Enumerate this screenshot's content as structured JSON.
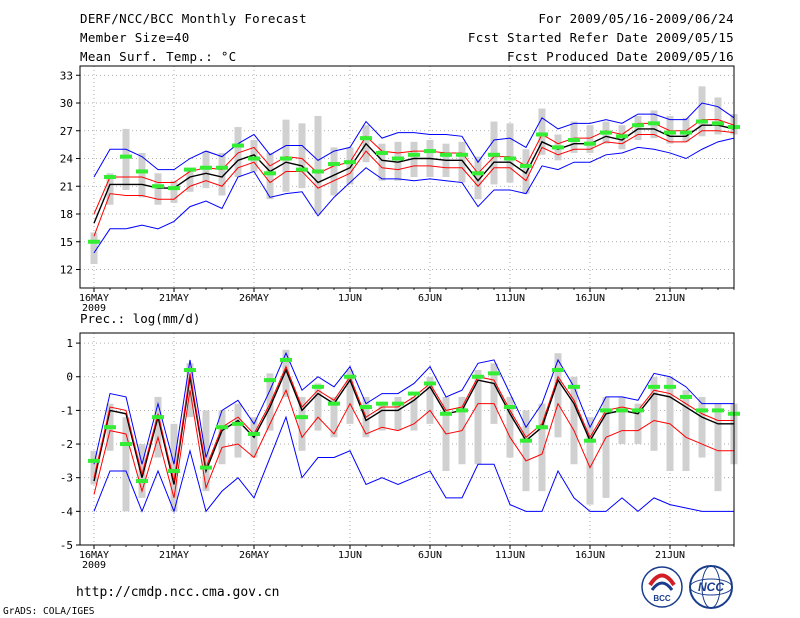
{
  "header": {
    "title": "DERF/NCC/BCC Monthly Forecast",
    "member_size": "Member Size=40",
    "variable1": "Mean Surf. Temp.: °C",
    "period": "For 2009/05/16-2009/06/24",
    "refer_date": "Fcst Started Refer Date 2009/05/15",
    "produced_date": "Fcst Produced Date 2009/05/16"
  },
  "footer": {
    "url": "http://cmdp.ncc.cma.gov.cn",
    "credit": "GrADS: COLA/IGES",
    "logo_bcc": "BCC",
    "logo_ncc": "NCC"
  },
  "colors": {
    "box": "#d0d0d0",
    "ensemble_mean": "#000000",
    "envelope": "#0000ff",
    "inner_band": "#ff0000",
    "observed_mark": "#33ee33",
    "grid": "#999999"
  },
  "chart_data": [
    {
      "type": "line",
      "title": "Mean Surf. Temp.: °C",
      "ylim": [
        10,
        34
      ],
      "yticks": [
        12,
        15,
        18,
        21,
        24,
        27,
        30,
        33
      ],
      "xticks": [
        {
          "day": 0,
          "label": "16MAY",
          "year": "2009"
        },
        {
          "day": 5,
          "label": "21MAY"
        },
        {
          "day": 10,
          "label": "26MAY"
        },
        {
          "day": 16,
          "label": "1JUN"
        },
        {
          "day": 21,
          "label": "6JUN"
        },
        {
          "day": 26,
          "label": "11JUN"
        },
        {
          "day": 31,
          "label": "16JUN"
        },
        {
          "day": 36,
          "label": "21JUN"
        }
      ],
      "series": [
        {
          "name": "ensemble mean",
          "values": [
            17.0,
            21.2,
            21.2,
            21.2,
            20.8,
            20.8,
            22.0,
            22.4,
            22.0,
            23.8,
            24.4,
            22.6,
            23.6,
            23.2,
            21.4,
            22.2,
            23.0,
            25.6,
            23.8,
            23.6,
            24.0,
            24.0,
            23.8,
            23.8,
            21.6,
            23.6,
            23.6,
            22.4,
            25.8,
            25.0,
            25.6,
            25.6,
            26.4,
            26.0,
            27.2,
            27.2,
            26.4,
            26.4,
            27.6,
            27.6,
            27.2
          ]
        },
        {
          "name": "upper envelope",
          "values": [
            22.0,
            25.0,
            25.0,
            24.2,
            22.8,
            22.8,
            24.0,
            24.8,
            24.2,
            25.6,
            26.6,
            24.4,
            25.4,
            25.4,
            23.8,
            24.8,
            25.2,
            28.0,
            26.2,
            26.8,
            26.8,
            26.6,
            26.6,
            26.4,
            23.6,
            26.0,
            26.2,
            25.2,
            28.4,
            27.2,
            27.8,
            27.8,
            28.2,
            27.8,
            28.8,
            28.8,
            28.2,
            28.2,
            30.0,
            29.6,
            28.4
          ]
        },
        {
          "name": "lower envelope",
          "values": [
            13.8,
            16.4,
            16.4,
            16.8,
            16.4,
            17.2,
            18.8,
            19.4,
            18.6,
            22.0,
            22.6,
            19.8,
            20.2,
            20.4,
            17.8,
            19.8,
            21.4,
            23.0,
            21.8,
            21.8,
            21.6,
            21.8,
            21.6,
            21.4,
            18.8,
            20.6,
            20.6,
            20.2,
            23.2,
            22.8,
            23.6,
            23.6,
            24.4,
            24.6,
            25.2,
            25.0,
            24.6,
            24.0,
            25.0,
            25.8,
            26.2
          ]
        },
        {
          "name": "upper band",
          "values": [
            18.0,
            22.0,
            22.0,
            22.0,
            21.4,
            21.4,
            22.6,
            23.0,
            22.8,
            24.6,
            25.2,
            23.2,
            24.2,
            24.0,
            22.4,
            23.2,
            23.6,
            26.4,
            24.8,
            24.6,
            24.8,
            24.8,
            24.6,
            24.6,
            22.4,
            24.2,
            24.2,
            23.2,
            26.6,
            25.6,
            26.2,
            26.2,
            27.0,
            26.6,
            27.8,
            27.8,
            27.0,
            27.0,
            28.2,
            28.2,
            27.6
          ]
        },
        {
          "name": "lower band",
          "values": [
            15.6,
            20.2,
            20.0,
            20.0,
            19.6,
            19.6,
            21.0,
            21.6,
            21.0,
            23.0,
            23.6,
            21.4,
            22.6,
            22.6,
            20.8,
            21.6,
            22.4,
            24.8,
            23.0,
            22.8,
            23.2,
            23.2,
            23.0,
            23.0,
            21.0,
            23.0,
            23.0,
            21.6,
            25.2,
            24.4,
            25.0,
            25.0,
            25.8,
            25.6,
            26.6,
            26.6,
            25.8,
            25.8,
            27.0,
            27.0,
            26.8
          ]
        },
        {
          "name": "observed",
          "values": [
            15.0,
            22.0,
            24.2,
            22.6,
            21.0,
            20.8,
            22.8,
            23.0,
            23.0,
            25.4,
            24.0,
            22.4,
            24.0,
            22.8,
            22.6,
            23.4,
            23.6,
            26.2,
            24.6,
            24.0,
            24.4,
            24.8,
            24.4,
            24.4,
            22.4,
            24.4,
            24.0,
            23.2,
            26.6,
            25.2,
            26.0,
            25.6,
            26.8,
            26.4,
            27.6,
            27.8,
            26.8,
            26.8,
            28.0,
            27.8,
            27.4
          ]
        }
      ],
      "box_low": [
        12.6,
        19.0,
        20.6,
        19.8,
        19.0,
        19.2,
        20.4,
        20.8,
        20.0,
        22.0,
        22.6,
        19.6,
        20.4,
        20.8,
        18.0,
        20.0,
        21.2,
        23.6,
        21.6,
        21.6,
        22.0,
        22.0,
        22.0,
        21.4,
        19.6,
        21.2,
        21.4,
        20.2,
        24.4,
        23.8,
        24.6,
        24.6,
        25.6,
        25.0,
        26.0,
        26.2,
        25.6,
        25.8,
        26.4,
        26.6,
        26.6
      ],
      "box_high": [
        16.0,
        22.4,
        27.2,
        24.6,
        22.4,
        21.6,
        22.8,
        24.8,
        24.6,
        27.4,
        26.0,
        24.6,
        28.2,
        27.8,
        28.6,
        25.2,
        25.2,
        27.6,
        25.6,
        25.8,
        25.8,
        26.0,
        25.6,
        25.8,
        24.2,
        28.0,
        27.8,
        25.0,
        29.4,
        26.6,
        28.0,
        27.6,
        28.0,
        27.6,
        28.6,
        29.2,
        28.6,
        28.4,
        31.8,
        30.6,
        28.8
      ]
    },
    {
      "type": "line",
      "title": "Prec.: log(mm/d)",
      "ylim": [
        -5,
        1.3
      ],
      "yticks": [
        -5,
        -4,
        -3,
        -2,
        -1,
        0,
        1
      ],
      "xticks": [
        {
          "day": 0,
          "label": "16MAY",
          "year": "2009"
        },
        {
          "day": 5,
          "label": "21MAY"
        },
        {
          "day": 10,
          "label": "26MAY"
        },
        {
          "day": 16,
          "label": "1JUN"
        },
        {
          "day": 21,
          "label": "6JUN"
        },
        {
          "day": 26,
          "label": "11JUN"
        },
        {
          "day": 31,
          "label": "16JUN"
        },
        {
          "day": 36,
          "label": "21JUN"
        }
      ],
      "series": [
        {
          "name": "ensemble mean",
          "values": [
            -3.1,
            -1.0,
            -1.1,
            -3.0,
            -1.2,
            -3.2,
            0.0,
            -2.8,
            -1.6,
            -1.3,
            -1.8,
            -0.9,
            0.2,
            -1.0,
            -0.5,
            -0.8,
            -0.1,
            -1.3,
            -1.0,
            -1.0,
            -0.7,
            -0.3,
            -1.1,
            -1.0,
            -0.1,
            -0.2,
            -1.1,
            -1.9,
            -1.5,
            -0.1,
            -0.8,
            -1.9,
            -1.1,
            -1.0,
            -1.1,
            -0.5,
            -0.6,
            -0.9,
            -1.2,
            -1.4,
            -1.4
          ]
        },
        {
          "name": "upper envelope",
          "values": [
            -2.6,
            -0.5,
            -0.6,
            -2.6,
            -0.8,
            -2.6,
            0.5,
            -2.4,
            -1.0,
            -0.7,
            -1.4,
            -0.4,
            0.7,
            -0.4,
            0.0,
            -0.3,
            0.3,
            -0.8,
            -0.5,
            -0.5,
            -0.2,
            0.3,
            -0.6,
            -0.4,
            0.4,
            0.5,
            -0.5,
            -1.5,
            -0.8,
            0.5,
            -0.3,
            -1.5,
            -0.6,
            -0.6,
            -0.7,
            0.1,
            0.0,
            -0.3,
            -0.8,
            -0.8,
            -0.8
          ]
        },
        {
          "name": "lower envelope",
          "values": [
            -4.0,
            -2.8,
            -2.8,
            -4.0,
            -2.8,
            -4.0,
            -2.2,
            -4.0,
            -3.4,
            -3.0,
            -3.6,
            -2.4,
            -1.2,
            -3.0,
            -2.4,
            -2.4,
            -2.2,
            -3.2,
            -3.0,
            -3.2,
            -3.0,
            -2.8,
            -3.6,
            -3.6,
            -2.6,
            -2.6,
            -3.8,
            -4.0,
            -4.0,
            -2.8,
            -3.6,
            -4.0,
            -4.0,
            -3.6,
            -4.0,
            -3.6,
            -3.8,
            -3.9,
            -4.0,
            -4.0,
            -4.0
          ]
        },
        {
          "name": "upper band",
          "values": [
            -3.0,
            -0.9,
            -1.0,
            -2.9,
            -1.1,
            -3.1,
            0.1,
            -2.7,
            -1.5,
            -1.2,
            -1.7,
            -0.8,
            0.3,
            -0.9,
            -0.4,
            -0.7,
            0.0,
            -1.2,
            -0.9,
            -0.9,
            -0.6,
            -0.2,
            -1.0,
            -0.9,
            0.0,
            -0.1,
            -1.0,
            -1.8,
            -1.4,
            0.0,
            -0.7,
            -1.8,
            -1.0,
            -0.9,
            -1.0,
            -0.4,
            -0.5,
            -0.8,
            -1.1,
            -1.3,
            -1.3
          ]
        },
        {
          "name": "lower band",
          "values": [
            -3.5,
            -1.6,
            -1.7,
            -3.4,
            -1.8,
            -3.6,
            -0.4,
            -3.3,
            -2.1,
            -2.0,
            -2.4,
            -1.4,
            -0.4,
            -1.8,
            -1.2,
            -1.7,
            -0.8,
            -1.7,
            -1.5,
            -1.6,
            -1.4,
            -1.0,
            -1.7,
            -1.6,
            -0.8,
            -0.8,
            -1.8,
            -2.5,
            -2.3,
            -0.8,
            -1.6,
            -2.7,
            -1.8,
            -1.6,
            -1.6,
            -1.3,
            -1.4,
            -1.8,
            -2.0,
            -2.2,
            -2.2
          ]
        },
        {
          "name": "observed",
          "values": [
            -2.5,
            -1.5,
            -2.0,
            -3.1,
            -1.2,
            -2.8,
            0.2,
            -2.7,
            -1.5,
            -1.4,
            -1.7,
            -0.1,
            0.5,
            -1.2,
            -0.3,
            -0.8,
            0.0,
            -0.9,
            -0.8,
            -0.8,
            -0.5,
            -0.2,
            -1.1,
            -1.0,
            0.0,
            0.1,
            -0.9,
            -1.9,
            -1.5,
            0.2,
            -0.3,
            -1.9,
            -1.0,
            -1.0,
            -1.0,
            -0.3,
            -0.3,
            -0.6,
            -1.0,
            -1.0,
            -1.1
          ]
        }
      ],
      "box_low": [
        -3.2,
        -2.2,
        -4.0,
        -3.6,
        -2.4,
        -4.0,
        -1.2,
        -3.4,
        -2.6,
        -2.4,
        -2.4,
        -1.6,
        -0.6,
        -2.2,
        -1.6,
        -1.8,
        -1.4,
        -1.8,
        -1.6,
        -1.6,
        -1.6,
        -1.4,
        -2.8,
        -2.6,
        -2.6,
        -1.4,
        -2.4,
        -3.4,
        -3.4,
        -1.8,
        -2.6,
        -3.8,
        -3.6,
        -2.0,
        -2.0,
        -2.2,
        -2.8,
        -2.8,
        -2.4,
        -3.4,
        -2.6
      ],
      "box_high": [
        -2.2,
        -0.8,
        -1.2,
        -2.0,
        -0.6,
        -1.4,
        0.4,
        -1.0,
        -1.0,
        -0.8,
        -1.2,
        0.1,
        0.8,
        -0.6,
        -0.2,
        -0.6,
        0.2,
        -0.6,
        -0.8,
        -0.6,
        -0.6,
        0.0,
        -0.6,
        -0.6,
        0.2,
        0.4,
        -0.6,
        -1.0,
        -0.8,
        0.7,
        0.0,
        -1.2,
        -0.6,
        -0.6,
        -0.8,
        0.0,
        0.0,
        -0.4,
        -0.6,
        -0.8,
        -0.8
      ]
    }
  ]
}
